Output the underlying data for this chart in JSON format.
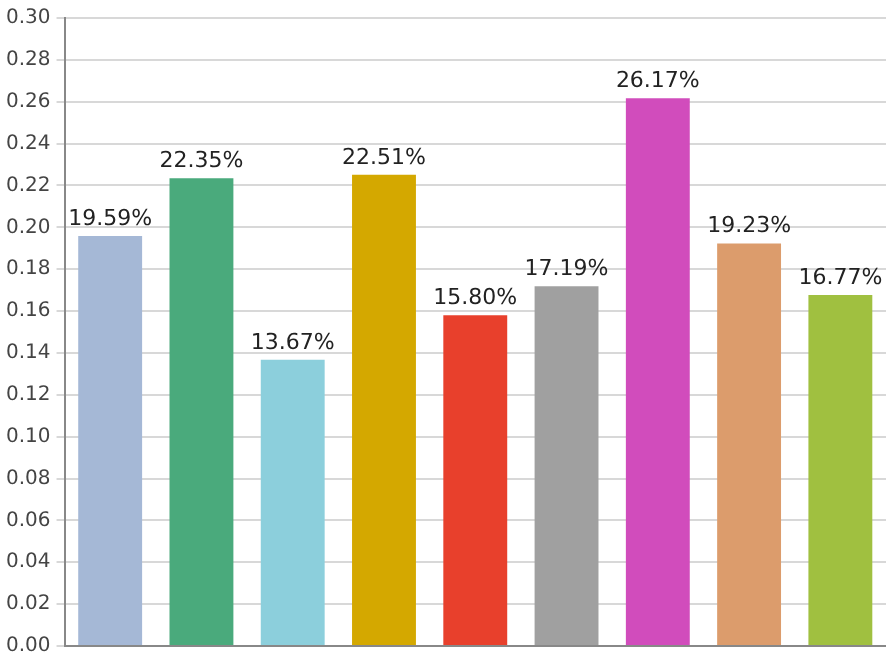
{
  "chart_data": {
    "type": "bar",
    "categories": [
      null,
      null,
      null,
      null,
      null,
      null,
      null,
      null,
      null
    ],
    "values": [
      0.1959,
      0.2235,
      0.1367,
      0.2251,
      0.158,
      0.1719,
      0.2617,
      0.1923,
      0.1677
    ],
    "colors": [
      "#a5b8d6",
      "#4aaa7c",
      "#8ccfdc",
      "#d4a800",
      "#e8402c",
      "#a0a0a0",
      "#d14cbc",
      "#dc9c6c",
      "#a0c040"
    ],
    "value_labels": [
      "19.59%",
      "22.35%",
      "13.67%",
      "22.51%",
      "15.80%",
      "17.19%",
      "26.17%",
      "19.23%",
      "16.77%"
    ],
    "ylim": [
      0,
      0.3
    ],
    "yticks": [
      "0.00",
      "0.02",
      "0.04",
      "0.06",
      "0.08",
      "0.10",
      "0.12",
      "0.14",
      "0.16",
      "0.18",
      "0.20",
      "0.22",
      "0.24",
      "0.26",
      "0.28",
      "0.30"
    ],
    "grid": "y"
  }
}
